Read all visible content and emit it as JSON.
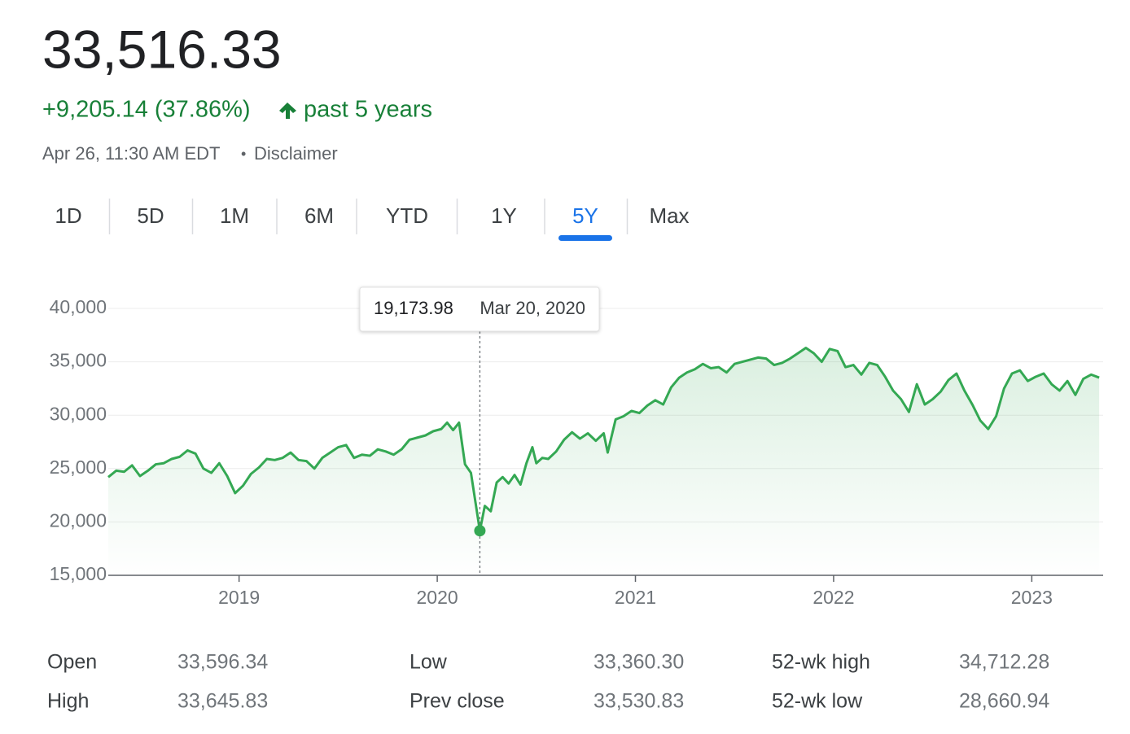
{
  "header": {
    "price": "33,516.33",
    "change": "+9,205.14 (37.86%)",
    "period": "past 5 years",
    "timestamp": "Apr 26, 11:30 AM EDT",
    "separator": "•",
    "disclaimer": "Disclaimer"
  },
  "tabs": [
    {
      "label": "1D"
    },
    {
      "label": "5D"
    },
    {
      "label": "1M"
    },
    {
      "label": "6M"
    },
    {
      "label": "YTD"
    },
    {
      "label": "1Y"
    },
    {
      "label": "5Y",
      "selected": true
    },
    {
      "label": "Max"
    }
  ],
  "chart_data": {
    "type": "line",
    "color": "#34a853",
    "grid": true,
    "xlim": [
      2018.34,
      2023.36
    ],
    "xticks": [
      2019,
      2020,
      2021,
      2022,
      2023
    ],
    "ylim": [
      15000,
      40000
    ],
    "yticks": [
      {
        "value": 15000,
        "label": "15,000"
      },
      {
        "value": 20000,
        "label": "20,000"
      },
      {
        "value": 25000,
        "label": "25,000"
      },
      {
        "value": 30000,
        "label": "30,000"
      },
      {
        "value": 35000,
        "label": "35,000"
      },
      {
        "value": 40000,
        "label": "40,000"
      }
    ],
    "tooltip": {
      "x": 2020.215,
      "value": 19173.98,
      "label": "19,173.98",
      "date": "Mar 20, 2020"
    },
    "x": [
      2018.34,
      2018.38,
      2018.42,
      2018.46,
      2018.5,
      2018.54,
      2018.58,
      2018.62,
      2018.66,
      2018.7,
      2018.74,
      2018.78,
      2018.82,
      2018.86,
      2018.9,
      2018.94,
      2018.98,
      2019.02,
      2019.06,
      2019.1,
      2019.14,
      2019.18,
      2019.22,
      2019.26,
      2019.3,
      2019.34,
      2019.38,
      2019.42,
      2019.46,
      2019.5,
      2019.54,
      2019.58,
      2019.62,
      2019.66,
      2019.7,
      2019.74,
      2019.78,
      2019.82,
      2019.86,
      2019.9,
      2019.94,
      2019.98,
      2020.02,
      2020.05,
      2020.08,
      2020.11,
      2020.14,
      2020.17,
      2020.215,
      2020.24,
      2020.27,
      2020.3,
      2020.33,
      2020.36,
      2020.39,
      2020.42,
      2020.45,
      2020.48,
      2020.5,
      2020.53,
      2020.56,
      2020.6,
      2020.64,
      2020.68,
      2020.72,
      2020.76,
      2020.8,
      2020.84,
      2020.86,
      2020.9,
      2020.94,
      2020.98,
      2021.02,
      2021.06,
      2021.1,
      2021.14,
      2021.18,
      2021.22,
      2021.26,
      2021.3,
      2021.34,
      2021.38,
      2021.42,
      2021.46,
      2021.5,
      2021.54,
      2021.58,
      2021.62,
      2021.66,
      2021.7,
      2021.74,
      2021.78,
      2021.82,
      2021.86,
      2021.9,
      2021.94,
      2021.98,
      2022.02,
      2022.06,
      2022.1,
      2022.14,
      2022.18,
      2022.22,
      2022.26,
      2022.3,
      2022.34,
      2022.38,
      2022.42,
      2022.46,
      2022.5,
      2022.54,
      2022.58,
      2022.62,
      2022.66,
      2022.7,
      2022.74,
      2022.78,
      2022.82,
      2022.86,
      2022.9,
      2022.94,
      2022.98,
      2023.02,
      2023.06,
      2023.1,
      2023.14,
      2023.18,
      2023.22,
      2023.26,
      2023.3,
      2023.34
    ],
    "values": [
      24200,
      24800,
      24700,
      25300,
      24300,
      24800,
      25400,
      25500,
      25900,
      26100,
      26700,
      26400,
      25000,
      24600,
      25500,
      24300,
      22700,
      23400,
      24500,
      25100,
      25900,
      25800,
      26000,
      26500,
      25800,
      25700,
      25000,
      26000,
      26500,
      27000,
      27200,
      26000,
      26300,
      26200,
      26800,
      26600,
      26300,
      26800,
      27700,
      27900,
      28100,
      28500,
      28700,
      29300,
      28600,
      29300,
      25400,
      24600,
      19173.98,
      21500,
      21000,
      23700,
      24200,
      23600,
      24400,
      23500,
      25500,
      27000,
      25500,
      26000,
      25900,
      26600,
      27700,
      28400,
      27800,
      28300,
      27600,
      28300,
      26500,
      29600,
      29900,
      30400,
      30200,
      30900,
      31400,
      31000,
      32600,
      33500,
      34000,
      34300,
      34800,
      34400,
      34500,
      34000,
      34800,
      35000,
      35200,
      35400,
      35300,
      34700,
      34900,
      35300,
      35800,
      36300,
      35800,
      35000,
      36200,
      36000,
      34500,
      34700,
      33800,
      34900,
      34700,
      33600,
      32300,
      31500,
      30300,
      32900,
      31000,
      31500,
      32200,
      33300,
      33900,
      32300,
      31000,
      29500,
      28700,
      29900,
      32500,
      33900,
      34200,
      33200,
      33600,
      33900,
      32900,
      32300,
      33200,
      31900,
      33400,
      33800,
      33516.33
    ]
  },
  "stats": [
    {
      "label": "Open",
      "value": "33,596.34"
    },
    {
      "label": "High",
      "value": "33,645.83"
    },
    {
      "label": "Low",
      "value": "33,360.30"
    },
    {
      "label": "Prev close",
      "value": "33,530.83"
    },
    {
      "label": "52-wk high",
      "value": "34,712.28"
    },
    {
      "label": "52-wk low",
      "value": "28,660.94"
    }
  ]
}
